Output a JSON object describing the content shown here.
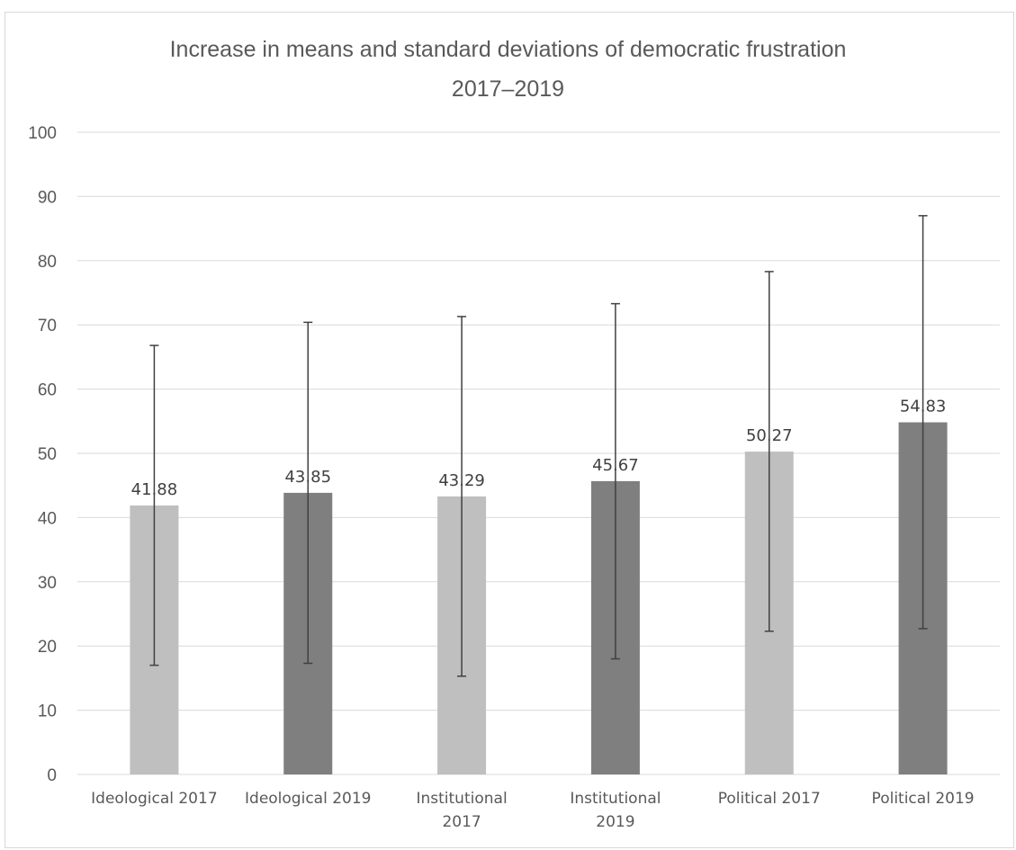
{
  "chart_data": {
    "type": "bar",
    "title_lines": [
      "Increase in means and standard deviations of democratic frustration",
      "2017–2019"
    ],
    "categories": [
      [
        "Ideological 2017"
      ],
      [
        "Ideological 2019"
      ],
      [
        "Institutional",
        "2017"
      ],
      [
        "Institutional",
        "2019"
      ],
      [
        "Political 2017"
      ],
      [
        "Political 2019"
      ]
    ],
    "values": [
      41.88,
      43.85,
      43.29,
      45.67,
      50.27,
      54.83
    ],
    "value_labels": [
      "41.88",
      "43.85",
      "43.29",
      "45.67",
      "50.27",
      "54.83"
    ],
    "error_low": [
      17.0,
      17.3,
      15.3,
      18.0,
      22.3,
      22.7
    ],
    "error_high": [
      66.8,
      70.4,
      71.3,
      73.3,
      78.3,
      87.0
    ],
    "bar_colors": [
      "#bfbfbf",
      "#7f7f7f",
      "#bfbfbf",
      "#7f7f7f",
      "#bfbfbf",
      "#7f7f7f"
    ],
    "error_bar_color": "#404040",
    "gridline_color": "#d9d9d9",
    "ylim": [
      0,
      100
    ],
    "yticks": [
      "0",
      "10",
      "20",
      "30",
      "40",
      "50",
      "60",
      "70",
      "80",
      "90",
      "100"
    ],
    "grid": true,
    "legend": "none",
    "xlabel": "",
    "ylabel": ""
  }
}
